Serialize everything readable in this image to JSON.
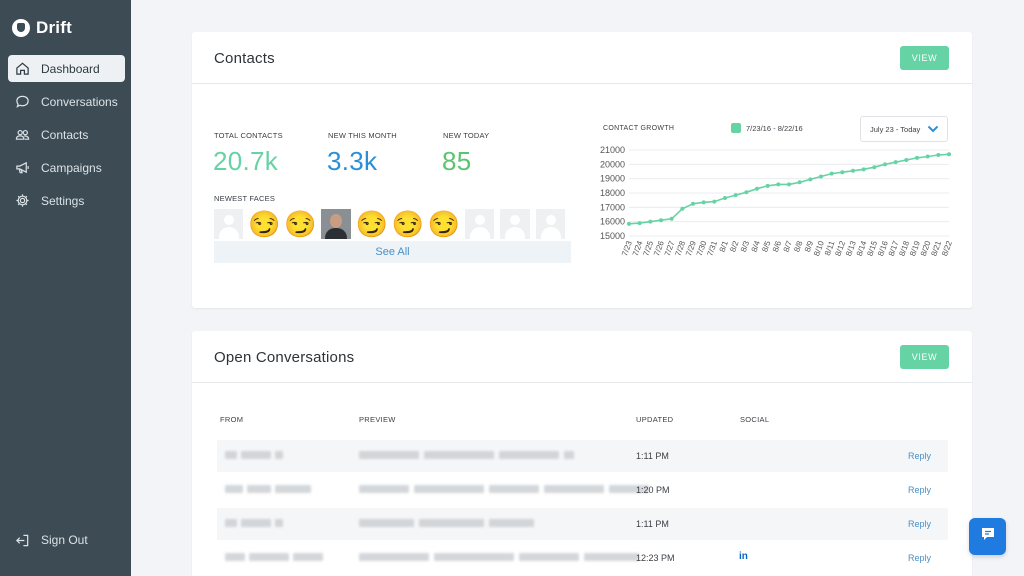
{
  "app": {
    "name": "Drift"
  },
  "sidebar": {
    "items": [
      {
        "label": "Dashboard",
        "icon": "home-icon",
        "active": true
      },
      {
        "label": "Conversations",
        "icon": "chat-bubble-icon"
      },
      {
        "label": "Contacts",
        "icon": "people-icon"
      },
      {
        "label": "Campaigns",
        "icon": "megaphone-icon"
      },
      {
        "label": "Settings",
        "icon": "gear-icon"
      }
    ],
    "signout_label": "Sign Out"
  },
  "contacts": {
    "title": "Contacts",
    "view_label": "VIEW",
    "stats": [
      {
        "label": "TOTAL CONTACTS",
        "value": "20.7k",
        "color": "#66d3a4"
      },
      {
        "label": "NEW THIS MONTH",
        "value": "3.3k",
        "color": "#2b8fd6"
      },
      {
        "label": "NEW TODAY",
        "value": "85",
        "color": "#5cc46e"
      }
    ],
    "newest_faces_label": "NEWEST FACES",
    "faces": [
      "blank",
      "smirk",
      "smirk",
      "photo",
      "smirk",
      "smirk",
      "smirk",
      "blank",
      "blank",
      "blank"
    ],
    "see_all_label": "See All",
    "chart_label": "CONTACT GROWTH",
    "legend_label": "7/23/16 - 8/22/16",
    "date_select_value": "July 23 - Today"
  },
  "chart_data": {
    "type": "line",
    "categories": [
      "7/23",
      "7/24",
      "7/25",
      "7/26",
      "7/27",
      "7/28",
      "7/29",
      "7/30",
      "7/31",
      "8/1",
      "8/2",
      "8/3",
      "8/4",
      "8/5",
      "8/6",
      "8/7",
      "8/8",
      "8/9",
      "8/10",
      "8/11",
      "8/12",
      "8/13",
      "8/14",
      "8/15",
      "8/16",
      "8/17",
      "8/18",
      "8/19",
      "8/20",
      "8/21",
      "8/22"
    ],
    "series": [
      {
        "name": "7/23/16 - 8/22/16",
        "color": "#66d3a4",
        "values": [
          15850,
          15900,
          16000,
          16100,
          16200,
          16900,
          17250,
          17350,
          17400,
          17650,
          17850,
          18050,
          18300,
          18500,
          18600,
          18600,
          18750,
          18950,
          19150,
          19350,
          19450,
          19550,
          19650,
          19800,
          20000,
          20150,
          20300,
          20450,
          20550,
          20650,
          20700
        ]
      }
    ],
    "yticks": [
      15000,
      16000,
      17000,
      18000,
      19000,
      20000,
      21000
    ],
    "ylim": [
      15000,
      21000
    ],
    "grid": true,
    "xlabel": "",
    "ylabel": "",
    "title": ""
  },
  "conversations": {
    "title": "Open Conversations",
    "view_label": "VIEW",
    "headers": {
      "from": "FROM",
      "preview": "PREVIEW",
      "updated": "UPDATED",
      "social": "SOCIAL"
    },
    "rows": [
      {
        "updated": "1:11 PM",
        "social": "",
        "reply": "Reply"
      },
      {
        "updated": "1:20 PM",
        "social": "",
        "reply": "Reply"
      },
      {
        "updated": "1:11 PM",
        "social": "",
        "reply": "Reply"
      },
      {
        "updated": "12:23 PM",
        "social": "in",
        "reply": "Reply"
      }
    ]
  }
}
